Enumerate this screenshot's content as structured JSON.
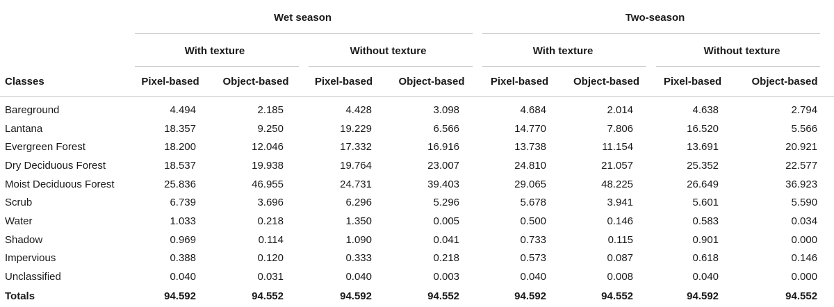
{
  "table": {
    "header": {
      "seasons": [
        "Wet season",
        "Two-season"
      ],
      "textures": [
        "With texture",
        "Without texture",
        "With texture",
        "Without texture"
      ],
      "classes_label": "Classes",
      "methods": [
        "Pixel-based",
        "Object-based",
        "Pixel-based",
        "Object-based",
        "Pixel-based",
        "Object-based",
        "Pixel-based",
        "Object-based"
      ]
    },
    "rows": [
      {
        "name": "Bareground",
        "values": [
          "4.494",
          "2.185",
          "4.428",
          "3.098",
          "4.684",
          "2.014",
          "4.638",
          "2.794"
        ]
      },
      {
        "name": "Lantana",
        "values": [
          "18.357",
          "9.250",
          "19.229",
          "6.566",
          "14.770",
          "7.806",
          "16.520",
          "5.566"
        ]
      },
      {
        "name": "Evergreen Forest",
        "values": [
          "18.200",
          "12.046",
          "17.332",
          "16.916",
          "13.738",
          "11.154",
          "13.691",
          "20.921"
        ]
      },
      {
        "name": "Dry Deciduous Forest",
        "values": [
          "18.537",
          "19.938",
          "19.764",
          "23.007",
          "24.810",
          "21.057",
          "25.352",
          "22.577"
        ]
      },
      {
        "name": "Moist Deciduous Forest",
        "values": [
          "25.836",
          "46.955",
          "24.731",
          "39.403",
          "29.065",
          "48.225",
          "26.649",
          "36.923"
        ]
      },
      {
        "name": "Scrub",
        "values": [
          "6.739",
          "3.696",
          "6.296",
          "5.296",
          "5.678",
          "3.941",
          "5.601",
          "5.590"
        ]
      },
      {
        "name": "Water",
        "values": [
          "1.033",
          "0.218",
          "1.350",
          "0.005",
          "0.500",
          "0.146",
          "0.583",
          "0.034"
        ]
      },
      {
        "name": "Shadow",
        "values": [
          "0.969",
          "0.114",
          "1.090",
          "0.041",
          "0.733",
          "0.115",
          "0.901",
          "0.000"
        ]
      },
      {
        "name": "Impervious",
        "values": [
          "0.388",
          "0.120",
          "0.333",
          "0.218",
          "0.573",
          "0.087",
          "0.618",
          "0.146"
        ]
      },
      {
        "name": "Unclassified",
        "values": [
          "0.040",
          "0.031",
          "0.040",
          "0.003",
          "0.040",
          "0.008",
          "0.040",
          "0.000"
        ]
      }
    ],
    "totals": {
      "name": "Totals",
      "values": [
        "94.592",
        "94.552",
        "94.592",
        "94.552",
        "94.592",
        "94.552",
        "94.592",
        "94.552"
      ]
    }
  }
}
